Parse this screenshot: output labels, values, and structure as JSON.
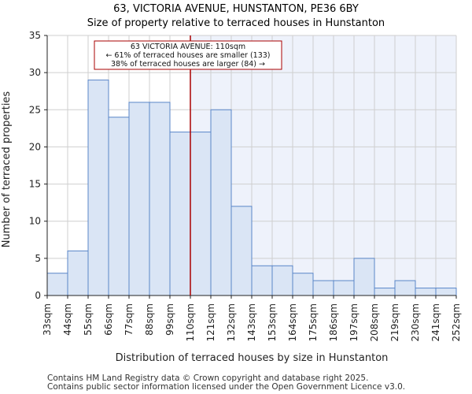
{
  "chart_data": {
    "type": "bar",
    "title": "63, VICTORIA AVENUE, HUNSTANTON, PE36 6BY",
    "subtitle": "Size of property relative to terraced houses in Hunstanton",
    "xlabel": "Distribution of terraced houses by size in Hunstanton",
    "ylabel": "Number of terraced properties",
    "ylim": [
      0,
      35
    ],
    "yticks": [
      0,
      5,
      10,
      15,
      20,
      25,
      30,
      35
    ],
    "bin_edges": [
      "33sqm",
      "44sqm",
      "55sqm",
      "66sqm",
      "77sqm",
      "88sqm",
      "99sqm",
      "110sqm",
      "121sqm",
      "132sqm",
      "143sqm",
      "153sqm",
      "164sqm",
      "175sqm",
      "186sqm",
      "197sqm",
      "208sqm",
      "219sqm",
      "230sqm",
      "241sqm",
      "252sqm"
    ],
    "values": [
      3,
      6,
      29,
      24,
      26,
      26,
      22,
      22,
      25,
      12,
      4,
      4,
      3,
      2,
      2,
      5,
      1,
      2,
      1,
      1
    ],
    "marker": {
      "label": "63 VICTORIA AVENUE: 110sqm",
      "bin_index": 7
    },
    "annotation": [
      "63 VICTORIA AVENUE: 110sqm",
      "← 61% of terraced houses are smaller (133)",
      "38% of terraced houses are larger (84) →"
    ],
    "colors": {
      "bar_fill": "#dae5f5",
      "bar_stroke": "#5a86c8",
      "marker": "#aa0000",
      "highlight_bg": "#eef2fb"
    }
  },
  "footer": {
    "line1": "Contains HM Land Registry data © Crown copyright and database right 2025.",
    "line2": "Contains public sector information licensed under the Open Government Licence v3.0."
  }
}
